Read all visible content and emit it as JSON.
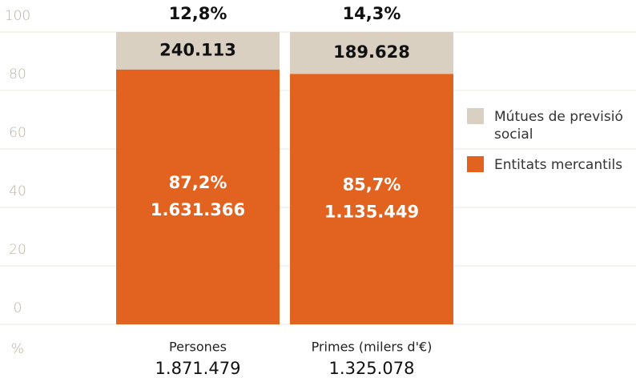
{
  "chart_data": {
    "type": "stacked_bar",
    "categories": [
      "Persones",
      "Primes (milers d'€)"
    ],
    "total_labels": [
      "1.871.479",
      "1.325.078"
    ],
    "y_axis_label": "%",
    "ylim": [
      0,
      100
    ],
    "yticks": [
      0,
      20,
      40,
      60,
      80,
      100
    ],
    "grid": true,
    "legend": "right",
    "series": [
      {
        "name": "Entitats mercantils",
        "color": "#e2621f",
        "values": [
          87.2,
          85.7
        ],
        "value_labels": [
          "87,2%",
          "85,7%"
        ],
        "count_labels": [
          "1.631.366",
          "1.135.449"
        ]
      },
      {
        "name": "Mútues de previsió social",
        "color": "#d9d0c1",
        "values": [
          12.8,
          14.3
        ],
        "value_labels": [
          "12,8%",
          "14,3%"
        ],
        "count_labels": [
          "240.113",
          "189.628"
        ]
      }
    ]
  }
}
